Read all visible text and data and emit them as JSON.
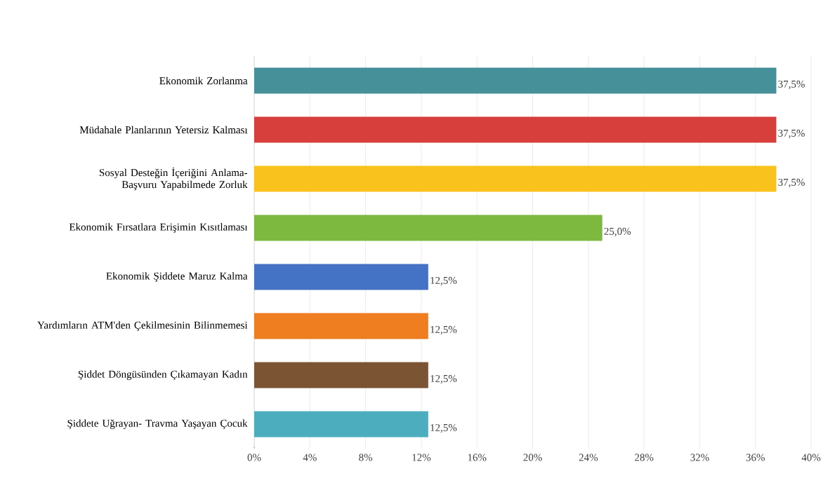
{
  "chart_data": {
    "type": "bar",
    "orientation": "horizontal",
    "categories": [
      "Ekonomik Zorlanma",
      "Müdahale Planlarının Yetersiz Kalması",
      "Sosyal Desteğin İçeriğini Anlama- Başvuru Yapabilmede Zorluk",
      "Ekonomik Fırsatlara Erişimin Kısıtlaması",
      "Ekonomik Şiddete Maruz Kalma",
      "Yardımların ATM'den Çekilmesinin Bilinmemesi",
      "Şiddet Döngüsünden Çıkamayan Kadın",
      "Şiddete Uğrayan- Travma Yaşayan Çocuk"
    ],
    "values": [
      37.5,
      37.5,
      37.5,
      25.0,
      12.5,
      12.5,
      12.5,
      12.5
    ],
    "value_labels": [
      "37,5%",
      "37,5%",
      "37,5%",
      "25,0%",
      "12,5%",
      "12,5%",
      "12,5%",
      "12,5%"
    ],
    "colors": [
      "#46909a",
      "#d63f3b",
      "#fac21c",
      "#7db83f",
      "#4472c4",
      "#ee7e20",
      "#7b5434",
      "#4cadbe"
    ],
    "xlim": [
      0,
      40
    ],
    "xticks": [
      {
        "value": 0,
        "label": "0%"
      },
      {
        "value": 4,
        "label": "4%"
      },
      {
        "value": 8,
        "label": "8%"
      },
      {
        "value": 12,
        "label": "12%"
      },
      {
        "value": 16,
        "label": "16%"
      },
      {
        "value": 20,
        "label": "20%"
      },
      {
        "value": 24,
        "label": "24%"
      },
      {
        "value": 28,
        "label": "28%"
      },
      {
        "value": 32,
        "label": "32%"
      },
      {
        "value": 36,
        "label": "36%"
      },
      {
        "value": 40,
        "label": "40%"
      }
    ],
    "grid": "x"
  }
}
